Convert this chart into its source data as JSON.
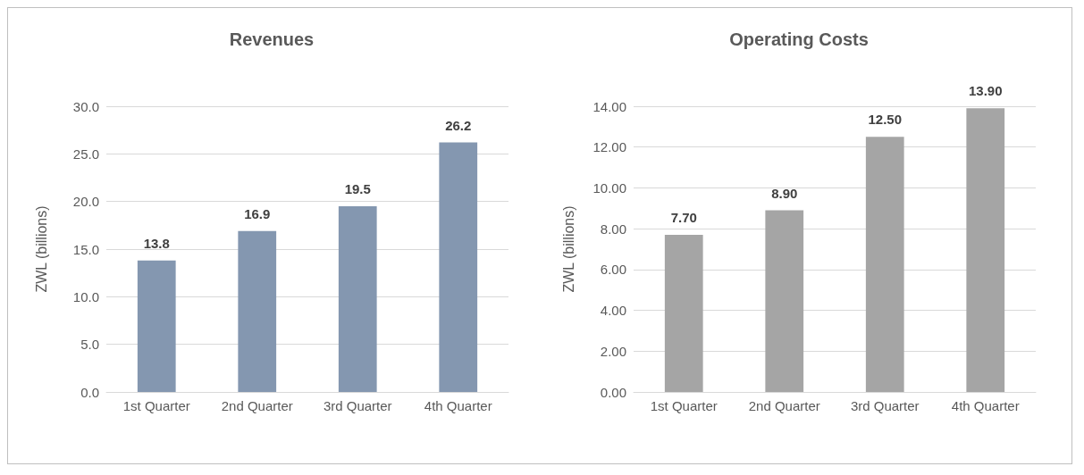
{
  "chart_data": [
    {
      "type": "bar",
      "title": "Revenues",
      "ylabel": "ZWL (billions)",
      "categories": [
        "1st Quarter",
        "2nd Quarter",
        "3rd Quarter",
        "4th Quarter"
      ],
      "values": [
        13.8,
        16.9,
        19.5,
        26.2
      ],
      "color": "#8497b0",
      "ylim": [
        0,
        30
      ],
      "yticks": [
        {
          "value": 0,
          "label": "0.0"
        },
        {
          "value": 5,
          "label": "5.0"
        },
        {
          "value": 10,
          "label": "10.0"
        },
        {
          "value": 15,
          "label": "15.0"
        },
        {
          "value": 20,
          "label": "20.0"
        },
        {
          "value": 25,
          "label": "25.0"
        },
        {
          "value": 30,
          "label": "30.0"
        }
      ],
      "grid": "y",
      "data_labels": true
    },
    {
      "type": "bar",
      "title": "Operating Costs",
      "ylabel": "ZWL (billions)",
      "categories": [
        "1st Quarter",
        "2nd Quarter",
        "3rd Quarter",
        "4th Quarter"
      ],
      "values": [
        7.7,
        8.9,
        12.5,
        13.9
      ],
      "value_labels": [
        "7.70",
        "8.90",
        "12.50",
        "13.90"
      ],
      "color": "#a5a5a5",
      "ylim": [
        0,
        14
      ],
      "yticks": [
        {
          "value": 0,
          "label": "0.00"
        },
        {
          "value": 2,
          "label": "2.00"
        },
        {
          "value": 4,
          "label": "4.00"
        },
        {
          "value": 6,
          "label": "6.00"
        },
        {
          "value": 8,
          "label": "8.00"
        },
        {
          "value": 10,
          "label": "10.00"
        },
        {
          "value": 12,
          "label": "12.00"
        },
        {
          "value": 14,
          "label": "14.00"
        }
      ],
      "grid": "y"
    }
  ]
}
